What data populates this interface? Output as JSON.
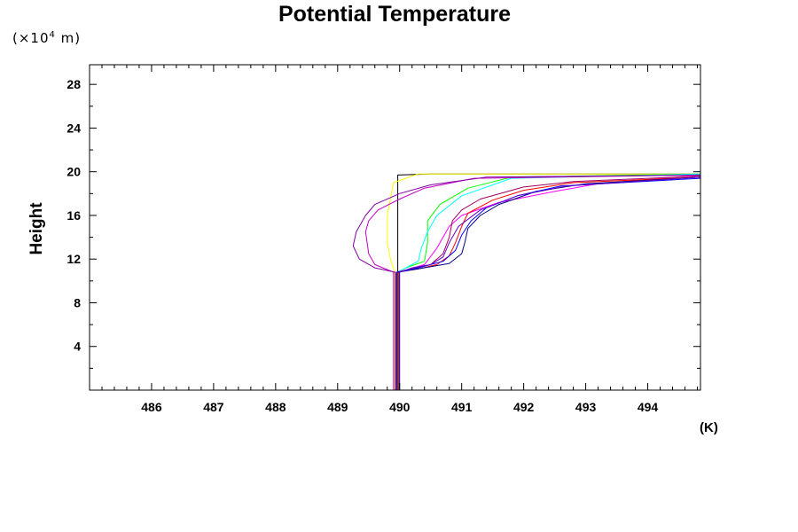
{
  "chart_data": {
    "type": "line",
    "title": "Potential Temperature",
    "ylabel": "Height",
    "y_unit_prefix": "(×10",
    "y_unit_exp": "4",
    "y_unit_suffix": " m)",
    "xlabel_unit": "(K)",
    "xlim": [
      485.0,
      494.85
    ],
    "ylim": [
      0,
      29.8
    ],
    "x_ticks": [
      486,
      487,
      488,
      489,
      490,
      491,
      492,
      493,
      494
    ],
    "y_ticks": [
      4,
      8,
      12,
      16,
      20,
      24,
      28
    ],
    "x_tick_labels": [
      "486",
      "487",
      "488",
      "489",
      "490",
      "491",
      "492",
      "493",
      "494"
    ],
    "y_tick_labels": [
      "4",
      "8",
      "12",
      "16",
      "20",
      "24",
      "28"
    ],
    "grid": false,
    "series": [
      {
        "color": "#000000",
        "points": [
          [
            489.97,
            0
          ],
          [
            489.97,
            11.5
          ],
          [
            489.97,
            19.7
          ],
          [
            490.5,
            19.8
          ],
          [
            494.85,
            19.8
          ]
        ]
      },
      {
        "color": "#ffff00",
        "points": [
          [
            489.92,
            0
          ],
          [
            489.92,
            10.8
          ],
          [
            489.85,
            12
          ],
          [
            489.8,
            13.5
          ],
          [
            489.8,
            16
          ],
          [
            489.9,
            19
          ],
          [
            490.3,
            19.8
          ],
          [
            494.85,
            19.8
          ]
        ]
      },
      {
        "color": "#00ff00",
        "points": [
          [
            489.98,
            0
          ],
          [
            489.98,
            10.8
          ],
          [
            490.1,
            11.2
          ],
          [
            490.4,
            11.8
          ],
          [
            490.45,
            13.5
          ],
          [
            490.45,
            15.5
          ],
          [
            490.65,
            17
          ],
          [
            491.1,
            18.5
          ],
          [
            491.8,
            19.5
          ],
          [
            494.85,
            19.8
          ]
        ]
      },
      {
        "color": "#00ffff",
        "points": [
          [
            489.96,
            0
          ],
          [
            489.96,
            10.8
          ],
          [
            490.1,
            11.2
          ],
          [
            490.3,
            11.8
          ],
          [
            490.35,
            13
          ],
          [
            490.45,
            14.5
          ],
          [
            490.6,
            16
          ],
          [
            491.0,
            17.8
          ],
          [
            491.8,
            19.4
          ],
          [
            494.85,
            19.8
          ]
        ]
      },
      {
        "color": "#ff00ff",
        "points": [
          [
            489.95,
            0
          ],
          [
            489.95,
            10.8
          ],
          [
            490.1,
            11.0
          ],
          [
            490.4,
            11.5
          ],
          [
            490.6,
            13
          ],
          [
            490.8,
            15
          ],
          [
            491.0,
            16
          ],
          [
            491.6,
            17.2
          ],
          [
            492.5,
            18.2
          ],
          [
            493.2,
            18.9
          ],
          [
            494.85,
            19.7
          ]
        ]
      },
      {
        "color": "#c000c0",
        "points": [
          [
            489.9,
            0
          ],
          [
            489.9,
            10.8
          ],
          [
            489.6,
            11.5
          ],
          [
            489.5,
            12.5
          ],
          [
            489.45,
            14.5
          ],
          [
            489.5,
            15.5
          ],
          [
            489.65,
            16.5
          ],
          [
            490.0,
            17.5
          ],
          [
            490.4,
            18.5
          ],
          [
            491.2,
            19.4
          ],
          [
            494.85,
            19.7
          ]
        ]
      },
      {
        "color": "#8000a0",
        "points": [
          [
            489.93,
            0
          ],
          [
            489.93,
            10.8
          ],
          [
            489.6,
            11.2
          ],
          [
            489.35,
            12
          ],
          [
            489.25,
            13.2
          ],
          [
            489.3,
            14.5
          ],
          [
            489.45,
            16
          ],
          [
            489.6,
            17
          ],
          [
            490.0,
            18
          ],
          [
            490.5,
            18.8
          ],
          [
            491.4,
            19.5
          ],
          [
            494.85,
            19.7
          ]
        ]
      },
      {
        "color": "#a00060",
        "points": [
          [
            489.96,
            0
          ],
          [
            489.96,
            10.8
          ],
          [
            490.2,
            11.1
          ],
          [
            490.5,
            11.5
          ],
          [
            490.7,
            12.5
          ],
          [
            490.8,
            14
          ],
          [
            490.85,
            15.5
          ],
          [
            491.0,
            16.5
          ],
          [
            491.3,
            17.5
          ],
          [
            492.0,
            18.6
          ],
          [
            492.8,
            19.1
          ],
          [
            494.85,
            19.6
          ]
        ]
      },
      {
        "color": "#ff0000",
        "points": [
          [
            489.97,
            0
          ],
          [
            489.97,
            10.8
          ],
          [
            490.3,
            11.1
          ],
          [
            490.6,
            11.5
          ],
          [
            490.8,
            12.3
          ],
          [
            490.9,
            13.5
          ],
          [
            491.0,
            15
          ],
          [
            491.1,
            16.2
          ],
          [
            491.5,
            17.4
          ],
          [
            492.0,
            18.3
          ],
          [
            492.8,
            19.0
          ],
          [
            494.85,
            19.5
          ]
        ]
      },
      {
        "color": "#000080",
        "points": [
          [
            489.95,
            0
          ],
          [
            489.95,
            10.8
          ],
          [
            490.3,
            11.1
          ],
          [
            490.8,
            11.6
          ],
          [
            491.0,
            12.5
          ],
          [
            491.05,
            13.5
          ],
          [
            491.1,
            14.8
          ],
          [
            491.3,
            16.0
          ],
          [
            491.6,
            17.0
          ],
          [
            492.2,
            18.2
          ],
          [
            493.0,
            18.9
          ],
          [
            494.85,
            19.5
          ]
        ]
      },
      {
        "color": "#0000ff",
        "points": [
          [
            489.99,
            0
          ],
          [
            489.99,
            10.8
          ],
          [
            490.3,
            11.2
          ],
          [
            490.7,
            11.8
          ],
          [
            490.9,
            12.8
          ],
          [
            491.0,
            14.2
          ],
          [
            491.15,
            15.5
          ],
          [
            491.4,
            16.7
          ],
          [
            491.9,
            17.8
          ],
          [
            492.6,
            18.7
          ],
          [
            494.85,
            19.4
          ]
        ]
      },
      {
        "color": "#6000c0",
        "points": [
          [
            490.0,
            0
          ],
          [
            490.0,
            10.8
          ],
          [
            490.2,
            11.2
          ],
          [
            490.5,
            11.5
          ],
          [
            490.7,
            12.2
          ],
          [
            490.8,
            13.5
          ],
          [
            490.95,
            15
          ],
          [
            491.3,
            16.5
          ],
          [
            491.9,
            17.8
          ],
          [
            492.7,
            18.7
          ],
          [
            494.85,
            19.5
          ]
        ]
      }
    ]
  }
}
